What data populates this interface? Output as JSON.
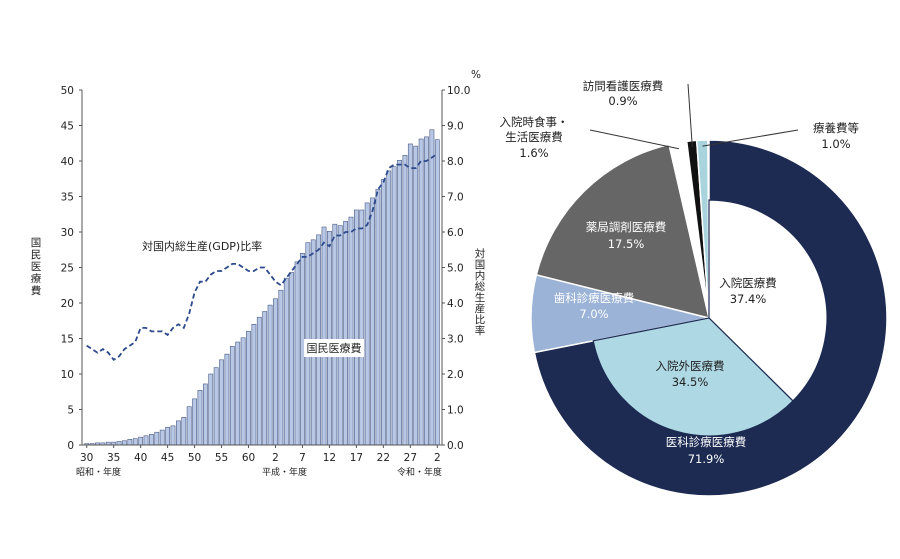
{
  "chart_data": [
    {
      "type": "bar",
      "ylabel": "国民医療費",
      "y2label": "対国内総生産比率",
      "y2unit": "%",
      "ylim": [
        0,
        50
      ],
      "y2lim": [
        0,
        10
      ],
      "yticks": [
        "0",
        "5",
        "10",
        "15",
        "20",
        "25",
        "30",
        "35",
        "40",
        "45",
        "50"
      ],
      "y2ticks": [
        "0.0",
        "1.0",
        "2.0",
        "3.0",
        "4.0",
        "5.0",
        "6.0",
        "7.0",
        "8.0",
        "9.0",
        "10.0"
      ],
      "xticks": [
        "30",
        "35",
        "40",
        "45",
        "50",
        "55",
        "60",
        "2",
        "7",
        "12",
        "17",
        "22",
        "27",
        "2"
      ],
      "era_labels": [
        "昭和・年度",
        "平成・年度",
        "令和・年度"
      ],
      "years": [
        "S30",
        "S31",
        "S32",
        "S33",
        "S34",
        "S35",
        "S36",
        "S37",
        "S38",
        "S39",
        "S40",
        "S41",
        "S42",
        "S43",
        "S44",
        "S45",
        "S46",
        "S47",
        "S48",
        "S49",
        "S50",
        "S51",
        "S52",
        "S53",
        "S54",
        "S55",
        "S56",
        "S57",
        "S58",
        "S59",
        "S60",
        "S61",
        "S62",
        "S63",
        "H1",
        "H2",
        "H3",
        "H4",
        "H5",
        "H6",
        "H7",
        "H8",
        "H9",
        "H10",
        "H11",
        "H12",
        "H13",
        "H14",
        "H15",
        "H16",
        "H17",
        "H18",
        "H19",
        "H20",
        "H21",
        "H22",
        "H23",
        "H24",
        "H25",
        "H26",
        "H27",
        "H28",
        "H29",
        "H30",
        "R1",
        "R2"
      ],
      "series": [
        {
          "name": "国民医療費",
          "kind": "bar",
          "values": [
            0.2,
            0.2,
            0.3,
            0.3,
            0.4,
            0.4,
            0.5,
            0.6,
            0.8,
            0.9,
            1.1,
            1.3,
            1.5,
            1.8,
            2.1,
            2.5,
            2.7,
            3.4,
            3.9,
            5.4,
            6.5,
            7.7,
            8.6,
            10.0,
            10.9,
            12.0,
            12.8,
            13.9,
            14.5,
            15.1,
            16.0,
            17.0,
            18.0,
            18.8,
            19.7,
            20.6,
            21.8,
            23.5,
            24.3,
            25.8,
            27.0,
            28.5,
            28.9,
            29.6,
            30.7,
            30.1,
            31.1,
            30.9,
            31.5,
            32.1,
            33.1,
            33.1,
            34.1,
            34.8,
            36.0,
            37.4,
            38.6,
            39.2,
            40.1,
            40.8,
            42.4,
            42.1,
            43.1,
            43.4,
            44.4,
            43.0
          ]
        },
        {
          "name": "対国内総生産(GDP)比率",
          "kind": "line",
          "axis": "right",
          "values": [
            2.8,
            2.7,
            2.6,
            2.7,
            2.6,
            2.4,
            2.5,
            2.7,
            2.8,
            2.9,
            3.3,
            3.3,
            3.2,
            3.2,
            3.2,
            3.1,
            3.3,
            3.4,
            3.3,
            3.7,
            4.3,
            4.6,
            4.6,
            4.8,
            4.9,
            4.9,
            5.0,
            5.1,
            5.1,
            5.0,
            4.9,
            4.9,
            5.0,
            5.0,
            4.8,
            4.6,
            4.5,
            4.7,
            4.9,
            5.1,
            5.3,
            5.3,
            5.4,
            5.5,
            5.7,
            5.6,
            5.9,
            5.9,
            6.0,
            6.0,
            6.1,
            6.1,
            6.2,
            6.6,
            7.2,
            7.4,
            7.8,
            7.9,
            7.9,
            7.9,
            7.8,
            7.8,
            8.0,
            8.0,
            8.1,
            8.2
          ]
        }
      ],
      "annotations": [
        "対国内総生産(GDP)比率",
        "国民医療費"
      ],
      "colors": {
        "bar_fill": "#b7c7e4",
        "bar_stroke": "#4a5c86",
        "line": "#2d4a8c",
        "axis": "#555555"
      }
    },
    {
      "type": "pie",
      "style": "donut-nested",
      "outer": [
        {
          "label": "医科診療医療費",
          "value": "71.9%",
          "pct": 71.9,
          "color": "#1d2b53",
          "text_color": "#ffffff"
        },
        {
          "label": "歯科診療医療費",
          "value": "7.0%",
          "pct": 7.0,
          "color": "#9bb3d6",
          "text_color": "#ffffff"
        },
        {
          "label": "薬局調剤医療費",
          "value": "17.5%",
          "pct": 17.5,
          "color": "#666666",
          "text_color": "#ffffff"
        },
        {
          "label": "入院時食事・\n生活医療費",
          "value": "1.6%",
          "pct": 1.6,
          "color": "#ffffff",
          "text_color": "#222222"
        },
        {
          "label": "訪問看護医療費",
          "value": "0.9%",
          "pct": 0.9,
          "color": "#111111",
          "text_color": "#222222"
        },
        {
          "label": "療養費等",
          "value": "1.0%",
          "pct": 1.0,
          "color": "#a9d4de",
          "text_color": "#222222"
        }
      ],
      "inner": [
        {
          "label": "入院医療費",
          "value": "37.4%",
          "pct": 37.4,
          "color": "#ffffff",
          "text_color": "#222222"
        },
        {
          "label": "入院外医療費",
          "value": "34.5%",
          "pct": 34.5,
          "color": "#aed8e3",
          "text_color": "#222222"
        }
      ]
    }
  ]
}
